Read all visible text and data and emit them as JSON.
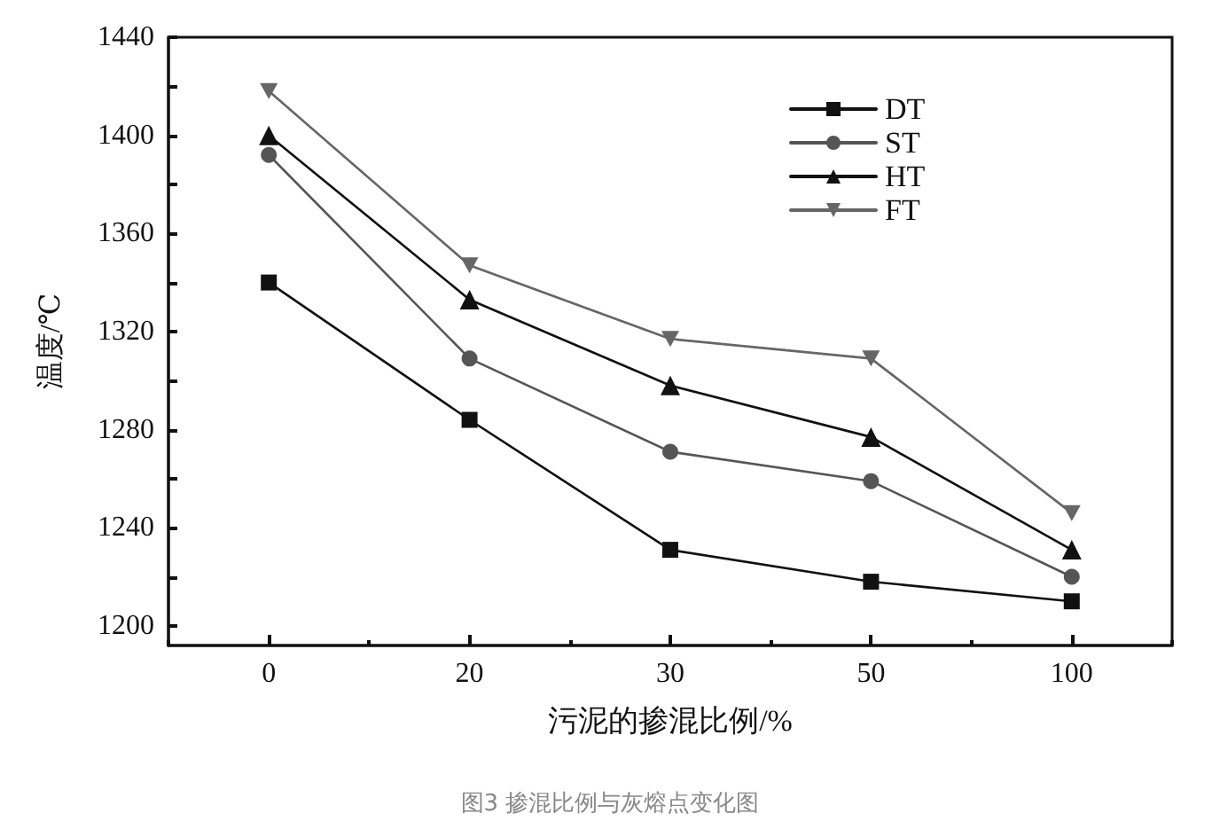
{
  "chart_data": {
    "type": "line",
    "annotations": [
      "图3 掺混比例与灰熔点变化图"
    ],
    "xlabel": "污泥的掺混比例/%",
    "ylabel": "温度/℃",
    "categories": [
      "0",
      "20",
      "30",
      "50",
      "100"
    ],
    "series": [
      {
        "name": "DT",
        "color": "#111111",
        "marker": "square",
        "values": [
          1340,
          1284,
          1231,
          1218,
          1210
        ]
      },
      {
        "name": "ST",
        "color": "#555555",
        "marker": "circle",
        "values": [
          1392,
          1309,
          1271,
          1259,
          1220
        ]
      },
      {
        "name": "HT",
        "color": "#111111",
        "marker": "triangle",
        "values": [
          1400,
          1333,
          1298,
          1277,
          1231
        ]
      },
      {
        "name": "FT",
        "color": "#666666",
        "marker": "triangle_down",
        "values": [
          1418,
          1347,
          1317,
          1309,
          1246
        ]
      }
    ],
    "ylim": [
      1192,
      1440
    ],
    "yticks": [
      1200,
      {
        "value": 1220,
        "label": null
      },
      1240,
      {
        "value": 1260,
        "label": null
      },
      1280,
      {
        "value": 1300,
        "label": null
      },
      1320,
      {
        "value": 1340,
        "label": null
      },
      1360,
      {
        "value": 1380,
        "label": null
      },
      1400,
      {
        "value": 1420,
        "label": null
      },
      1440
    ],
    "legend": "top right",
    "line_style": "solid"
  }
}
